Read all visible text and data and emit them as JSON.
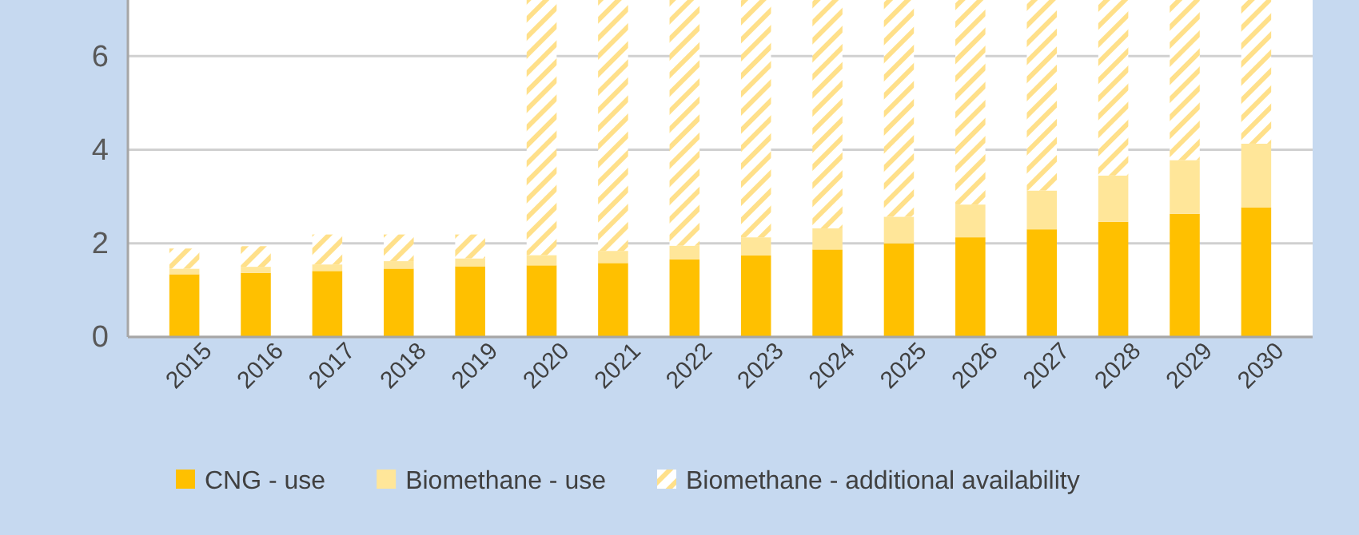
{
  "chart_data": {
    "type": "bar",
    "stacked": true,
    "categories": [
      "2015",
      "2016",
      "2017",
      "2018",
      "2019",
      "2020",
      "2021",
      "2022",
      "2023",
      "2024",
      "2025",
      "2026",
      "2027",
      "2028",
      "2029",
      "2030"
    ],
    "series": [
      {
        "name": "CNG - use",
        "color": "#ffc000",
        "values": [
          1.34,
          1.37,
          1.41,
          1.46,
          1.51,
          1.53,
          1.58,
          1.66,
          1.74,
          1.87,
          2.0,
          2.13,
          2.3,
          2.46,
          2.63,
          2.77
        ]
      },
      {
        "name": "Biomethane - use",
        "color": "#ffe699",
        "values": [
          0.12,
          0.13,
          0.14,
          0.16,
          0.17,
          0.22,
          0.26,
          0.29,
          0.39,
          0.45,
          0.57,
          0.7,
          0.83,
          0.99,
          1.15,
          1.36
        ]
      },
      {
        "name": "Biomethane - additional availability",
        "color": "#ffe08a",
        "line_style": "dashed",
        "values": [
          0.43,
          0.44,
          0.64,
          0.57,
          0.51,
          5.45,
          5.36,
          5.25,
          5.07,
          4.88,
          4.63,
          4.37,
          4.07,
          3.75,
          3.42,
          3.07
        ]
      }
    ],
    "ylim": [
      0,
      7.2
    ],
    "yticks": [
      0,
      2,
      4,
      6
    ],
    "grid": "y",
    "legend": "bottom"
  }
}
